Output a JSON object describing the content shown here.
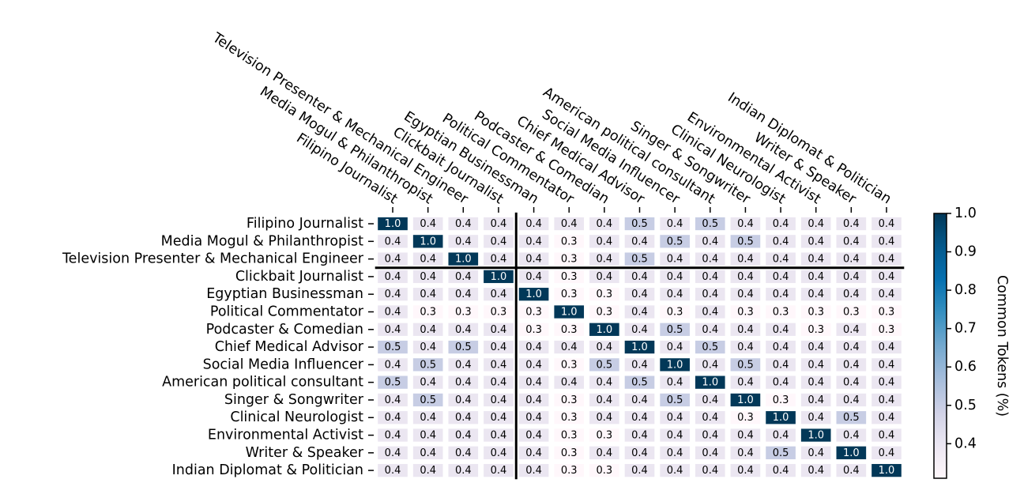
{
  "chart_data": {
    "type": "heatmap",
    "colormap": "PuBu",
    "x_categories": [
      "Filipino Journalist",
      "Media Mogul & Philanthropist",
      "Television Presenter & Mechanical Engineer",
      "Clickbait Journalist",
      "Egyptian Businessman",
      "Political Commentator",
      "Podcaster & Comedian",
      "Chief Medical Advisor",
      "Social Media Influencer",
      "American political consultant",
      "Singer & Songwriter",
      "Clinical Neurologist",
      "Environmental Activist",
      "Writer & Speaker",
      "Indian Diplomat & Politician"
    ],
    "y_categories": [
      "Filipino Journalist",
      "Media Mogul & Philanthropist",
      "Television Presenter & Mechanical Engineer",
      "Clickbait Journalist",
      "Egyptian Businessman",
      "Political Commentator",
      "Podcaster & Comedian",
      "Chief Medical Advisor",
      "Social Media Influencer",
      "American political consultant",
      "Singer & Songwriter",
      "Clinical Neurologist",
      "Environmental Activist",
      "Writer & Speaker",
      "Indian Diplomat & Politician"
    ],
    "values": [
      [
        1.0,
        0.4,
        0.4,
        0.4,
        0.4,
        0.4,
        0.4,
        0.5,
        0.4,
        0.5,
        0.4,
        0.4,
        0.4,
        0.4,
        0.4
      ],
      [
        0.4,
        1.0,
        0.4,
        0.4,
        0.4,
        0.3,
        0.4,
        0.4,
        0.5,
        0.4,
        0.5,
        0.4,
        0.4,
        0.4,
        0.4
      ],
      [
        0.4,
        0.4,
        1.0,
        0.4,
        0.4,
        0.3,
        0.4,
        0.5,
        0.4,
        0.4,
        0.4,
        0.4,
        0.4,
        0.4,
        0.4
      ],
      [
        0.4,
        0.4,
        0.4,
        1.0,
        0.4,
        0.3,
        0.4,
        0.4,
        0.4,
        0.4,
        0.4,
        0.4,
        0.4,
        0.4,
        0.4
      ],
      [
        0.4,
        0.4,
        0.4,
        0.4,
        1.0,
        0.3,
        0.3,
        0.4,
        0.4,
        0.4,
        0.4,
        0.4,
        0.4,
        0.4,
        0.4
      ],
      [
        0.4,
        0.3,
        0.3,
        0.3,
        0.3,
        1.0,
        0.3,
        0.4,
        0.3,
        0.4,
        0.3,
        0.3,
        0.3,
        0.3,
        0.3
      ],
      [
        0.4,
        0.4,
        0.4,
        0.4,
        0.3,
        0.3,
        1.0,
        0.4,
        0.5,
        0.4,
        0.4,
        0.4,
        0.3,
        0.4,
        0.3
      ],
      [
        0.5,
        0.4,
        0.5,
        0.4,
        0.4,
        0.4,
        0.4,
        1.0,
        0.4,
        0.5,
        0.4,
        0.4,
        0.4,
        0.4,
        0.4
      ],
      [
        0.4,
        0.5,
        0.4,
        0.4,
        0.4,
        0.3,
        0.5,
        0.4,
        1.0,
        0.4,
        0.5,
        0.4,
        0.4,
        0.4,
        0.4
      ],
      [
        0.5,
        0.4,
        0.4,
        0.4,
        0.4,
        0.4,
        0.4,
        0.5,
        0.4,
        1.0,
        0.4,
        0.4,
        0.4,
        0.4,
        0.4
      ],
      [
        0.4,
        0.5,
        0.4,
        0.4,
        0.4,
        0.3,
        0.4,
        0.4,
        0.5,
        0.4,
        1.0,
        0.3,
        0.4,
        0.4,
        0.4
      ],
      [
        0.4,
        0.4,
        0.4,
        0.4,
        0.4,
        0.3,
        0.4,
        0.4,
        0.4,
        0.4,
        0.3,
        1.0,
        0.4,
        0.5,
        0.4
      ],
      [
        0.4,
        0.4,
        0.4,
        0.4,
        0.4,
        0.3,
        0.3,
        0.4,
        0.4,
        0.4,
        0.4,
        0.4,
        1.0,
        0.4,
        0.4
      ],
      [
        0.4,
        0.4,
        0.4,
        0.4,
        0.4,
        0.3,
        0.4,
        0.4,
        0.4,
        0.4,
        0.4,
        0.5,
        0.4,
        1.0,
        0.4
      ],
      [
        0.4,
        0.4,
        0.4,
        0.4,
        0.4,
        0.3,
        0.3,
        0.4,
        0.4,
        0.4,
        0.4,
        0.4,
        0.4,
        0.4,
        1.0
      ]
    ],
    "value_labels": [
      [
        "1.0",
        "0.4",
        "0.4",
        "0.4",
        "0.4",
        "0.4",
        "0.4",
        "0.5",
        "0.4",
        "0.5",
        "0.4",
        "0.4",
        "0.4",
        "0.4",
        "0.4"
      ],
      [
        "0.4",
        "1.0",
        "0.4",
        "0.4",
        "0.4",
        "0.3",
        "0.4",
        "0.4",
        "0.5",
        "0.4",
        "0.5",
        "0.4",
        "0.4",
        "0.4",
        "0.4"
      ],
      [
        "0.4",
        "0.4",
        "1.0",
        "0.4",
        "0.4",
        "0.3",
        "0.4",
        "0.5",
        "0.4",
        "0.4",
        "0.4",
        "0.4",
        "0.4",
        "0.4",
        "0.4"
      ],
      [
        "0.4",
        "0.4",
        "0.4",
        "1.0",
        "0.4",
        "0.3",
        "0.4",
        "0.4",
        "0.4",
        "0.4",
        "0.4",
        "0.4",
        "0.4",
        "0.4",
        "0.4"
      ],
      [
        "0.4",
        "0.4",
        "0.4",
        "0.4",
        "1.0",
        "0.3",
        "0.3",
        "0.4",
        "0.4",
        "0.4",
        "0.4",
        "0.4",
        "0.4",
        "0.4",
        "0.4"
      ],
      [
        "0.4",
        "0.3",
        "0.3",
        "0.3",
        "0.3",
        "1.0",
        "0.3",
        "0.4",
        "0.3",
        "0.4",
        "0.3",
        "0.3",
        "0.3",
        "0.3",
        "0.3"
      ],
      [
        "0.4",
        "0.4",
        "0.4",
        "0.4",
        "0.3",
        "0.3",
        "1.0",
        "0.4",
        "0.5",
        "0.4",
        "0.4",
        "0.4",
        "0.3",
        "0.4",
        "0.3"
      ],
      [
        "0.5",
        "0.4",
        "0.5",
        "0.4",
        "0.4",
        "0.4",
        "0.4",
        "1.0",
        "0.4",
        "0.5",
        "0.4",
        "0.4",
        "0.4",
        "0.4",
        "0.4"
      ],
      [
        "0.4",
        "0.5",
        "0.4",
        "0.4",
        "0.4",
        "0.3",
        "0.5",
        "0.4",
        "1.0",
        "0.4",
        "0.5",
        "0.4",
        "0.4",
        "0.4",
        "0.4"
      ],
      [
        "0.5",
        "0.4",
        "0.4",
        "0.4",
        "0.4",
        "0.4",
        "0.4",
        "0.5",
        "0.4",
        "1.0",
        "0.4",
        "0.4",
        "0.4",
        "0.4",
        "0.4"
      ],
      [
        "0.4",
        "0.5",
        "0.4",
        "0.4",
        "0.4",
        "0.3",
        "0.4",
        "0.4",
        "0.5",
        "0.4",
        "1.0",
        "0.3",
        "0.4",
        "0.4",
        "0.4"
      ],
      [
        "0.4",
        "0.4",
        "0.4",
        "0.4",
        "0.4",
        "0.3",
        "0.4",
        "0.4",
        "0.4",
        "0.4",
        "0.3",
        "1.0",
        "0.4",
        "0.5",
        "0.4"
      ],
      [
        "0.4",
        "0.4",
        "0.4",
        "0.4",
        "0.4",
        "0.3",
        "0.3",
        "0.4",
        "0.4",
        "0.4",
        "0.4",
        "0.4",
        "1.0",
        "0.4",
        "0.4"
      ],
      [
        "0.4",
        "0.4",
        "0.4",
        "0.4",
        "0.4",
        "0.3",
        "0.4",
        "0.4",
        "0.4",
        "0.4",
        "0.4",
        "0.5",
        "0.4",
        "1.0",
        "0.4"
      ],
      [
        "0.4",
        "0.4",
        "0.4",
        "0.4",
        "0.4",
        "0.3",
        "0.3",
        "0.4",
        "0.4",
        "0.4",
        "0.4",
        "0.4",
        "0.4",
        "0.4",
        "1.0"
      ]
    ],
    "clim": [
      0.31,
      1.0
    ],
    "cticks": [
      0.4,
      0.5,
      0.6,
      0.7,
      0.8,
      0.9,
      {
        "value": 1.0,
        "label": "1.0"
      }
    ],
    "colorbar_label": "Common Tokens (%)"
  }
}
